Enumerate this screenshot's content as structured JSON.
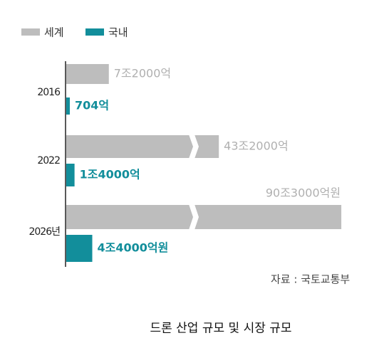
{
  "chart_data": {
    "type": "hbar",
    "categories": [
      "2016",
      "2022",
      "2026년"
    ],
    "series": [
      {
        "name": "세계",
        "color": "#bdbdbd",
        "values": [
          72000,
          432000,
          903000
        ],
        "value_labels": [
          "7조2000억",
          "43조2000억",
          "90조3000억원"
        ]
      },
      {
        "name": "국내",
        "color": "#128e9b",
        "values": [
          704,
          14000,
          44000
        ],
        "value_labels": [
          "704억",
          "1조4000억",
          "4조4000억원"
        ]
      }
    ],
    "source": "자료 : 국토교통부",
    "caption": "드론 산업 규모 및 시장 규모"
  }
}
